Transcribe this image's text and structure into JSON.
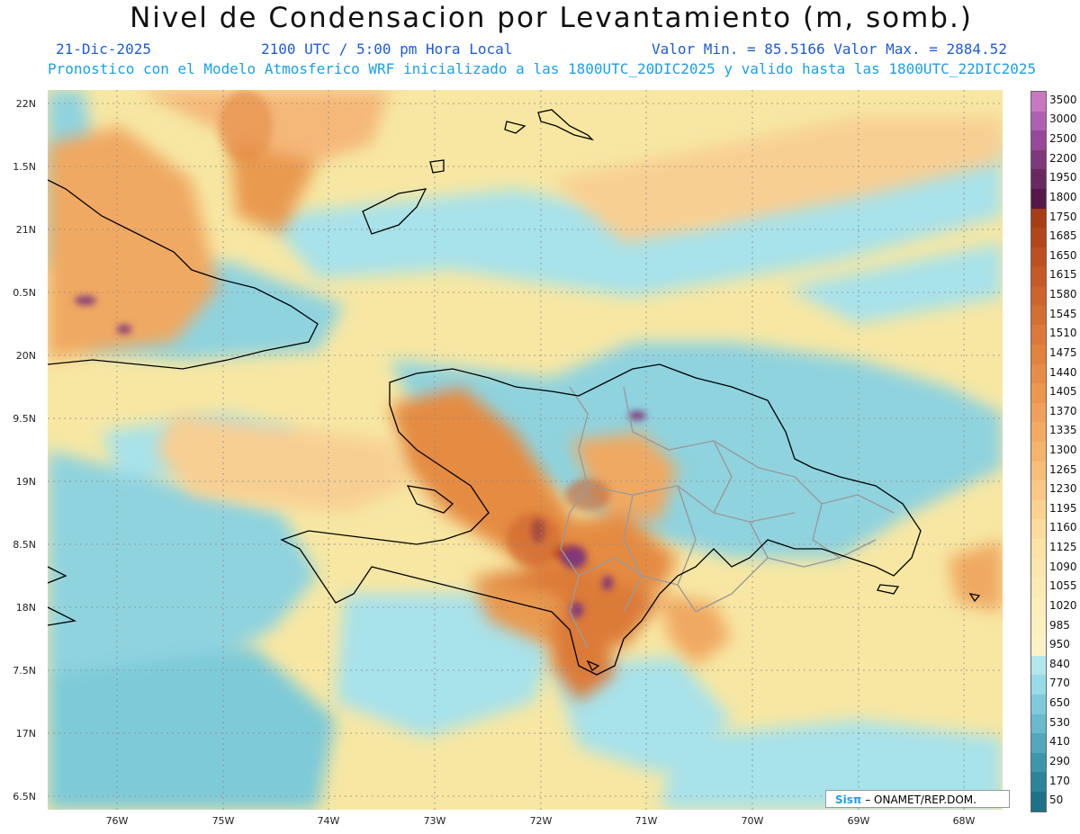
{
  "title": "Nivel de Condensacion por Levantamiento (m, somb.)",
  "header": {
    "date": "21-Dic-2025",
    "time": "2100 UTC / 5:00 pm Hora Local",
    "minmax": "Valor Min. = 85.5166  Valor Max. = 2884.52",
    "forecast": "Pronostico con el Modelo Atmosferico WRF inicializado a las 1800UTC_20DIC2025 y valido hasta las  1800UTC_22DIC2025"
  },
  "axes": {
    "y_labels": [
      "22N",
      "1.5N",
      "21N",
      "0.5N",
      "20N",
      "9.5N",
      "19N",
      "8.5N",
      "18N",
      "7.5N",
      "17N",
      "6.5N"
    ],
    "x_labels": [
      "76W",
      "75W",
      "74W",
      "73W",
      "72W",
      "71W",
      "70W",
      "69W",
      "68W"
    ]
  },
  "colorbar": {
    "labels": [
      "3500",
      "3000",
      "2500",
      "2200",
      "1950",
      "1800",
      "1750",
      "1685",
      "1650",
      "1615",
      "1580",
      "1545",
      "1510",
      "1475",
      "1440",
      "1405",
      "1370",
      "1335",
      "1300",
      "1265",
      "1230",
      "1195",
      "1160",
      "1125",
      "1090",
      "1055",
      "1020",
      "985",
      "950",
      "840",
      "770",
      "650",
      "530",
      "410",
      "290",
      "170",
      "50"
    ],
    "colors": [
      "#c878c0",
      "#b060b0",
      "#984898",
      "#803878",
      "#6a2860",
      "#551848",
      "#a83c14",
      "#b2451a",
      "#bc5020",
      "#c55a26",
      "#cd642c",
      "#d56e32",
      "#dc7838",
      "#e2823e",
      "#e78c46",
      "#ec964e",
      "#f0a058",
      "#f3aa62",
      "#f5b46c",
      "#f7be78",
      "#f8c884",
      "#f9d290",
      "#fadc9c",
      "#fbe2a6",
      "#fbe6ae",
      "#fbeab4",
      "#fbeeba",
      "#fbf0c0",
      "#fbf2c6",
      "#b4e6ee",
      "#98dae6",
      "#7ecad8",
      "#68bacc",
      "#52a8bc",
      "#3e96ac",
      "#2c849a",
      "#1e7288"
    ]
  },
  "credit": {
    "brand": "Sisπ",
    "text": "– ONAMET/REP.DOM."
  },
  "colors": {
    "title": "#111111",
    "header_blue": "#1f5bd8",
    "header_cyan": "#1aa0e8",
    "province_lines": "#9a9a9a",
    "coast_lines": "#000000"
  }
}
